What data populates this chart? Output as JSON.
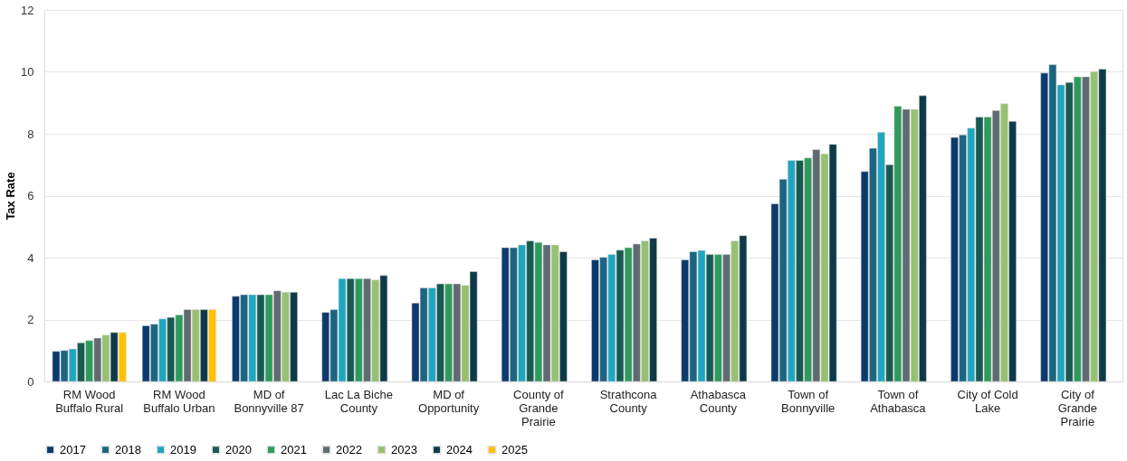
{
  "chart_data": {
    "type": "bar",
    "ylabel": "Tax Rate",
    "categories": [
      "RM Wood Buffalo Rural",
      "RM Wood Buffalo Urban",
      "MD of Bonnyville 87",
      "Lac La Biche County",
      "MD of Opportunity",
      "County of Grande Prairie",
      "Strathcona County",
      "Athabasca County",
      "Town of Bonnyville",
      "Town of Athabasca",
      "City of Cold Lake",
      "City of Grande Prairie"
    ],
    "series": [
      {
        "name": "2017",
        "color": "#0b3a6e",
        "values": [
          0.97,
          1.8,
          2.75,
          2.23,
          2.53,
          4.32,
          3.93,
          3.93,
          5.74,
          6.78,
          7.88,
          9.96
        ]
      },
      {
        "name": "2018",
        "color": "#1b6580",
        "values": [
          1.0,
          1.85,
          2.8,
          2.32,
          3.02,
          4.32,
          4.01,
          4.19,
          6.53,
          7.53,
          7.96,
          10.23
        ]
      },
      {
        "name": "2019",
        "color": "#1fa6bf",
        "values": [
          1.05,
          2.02,
          2.8,
          3.32,
          3.02,
          4.41,
          4.1,
          4.23,
          7.14,
          8.05,
          8.18,
          9.58
        ]
      },
      {
        "name": "2020",
        "color": "#185a52",
        "values": [
          1.25,
          2.07,
          2.8,
          3.32,
          3.15,
          4.54,
          4.24,
          4.1,
          7.14,
          7.0,
          8.54,
          9.66
        ]
      },
      {
        "name": "2021",
        "color": "#2e9a5e",
        "values": [
          1.32,
          2.15,
          2.8,
          3.32,
          3.15,
          4.49,
          4.32,
          4.1,
          7.22,
          8.89,
          8.54,
          9.84
        ]
      },
      {
        "name": "2022",
        "color": "#5f6b70",
        "values": [
          1.4,
          2.32,
          2.93,
          3.32,
          3.15,
          4.41,
          4.44,
          4.1,
          7.49,
          8.79,
          8.75,
          9.84
        ]
      },
      {
        "name": "2023",
        "color": "#96c170",
        "values": [
          1.5,
          2.32,
          2.88,
          3.28,
          3.1,
          4.41,
          4.54,
          4.54,
          7.35,
          8.79,
          8.97,
          10.01
        ]
      },
      {
        "name": "2024",
        "color": "#0e3a48",
        "values": [
          1.58,
          2.32,
          2.88,
          3.42,
          3.55,
          4.19,
          4.63,
          4.71,
          7.66,
          9.23,
          8.4,
          10.09
        ]
      },
      {
        "name": "2025",
        "color": "#ffc000",
        "values": [
          1.58,
          2.32,
          null,
          null,
          null,
          null,
          null,
          null,
          null,
          null,
          null,
          null
        ]
      }
    ],
    "ylim": [
      0,
      12
    ],
    "yticks": [
      0,
      2,
      4,
      6,
      8,
      10,
      12
    ],
    "grid": "y",
    "legend": "bottom"
  }
}
